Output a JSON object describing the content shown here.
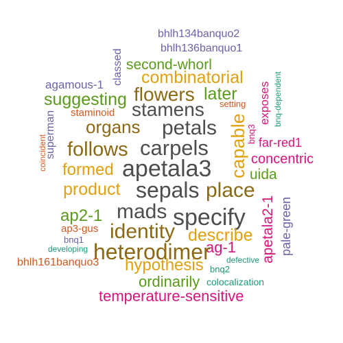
{
  "colors": {
    "gray": "#4d4d4d",
    "brown": "#8b6914",
    "gold": "#e0a010",
    "green": "#5a9a1a",
    "purple": "#6a62a8",
    "pink": "#d6157c",
    "orange": "#d4581e",
    "teal": "#1b9a77"
  },
  "words": {
    "bhlh134banquo2": "bhlh134banquo2",
    "bhlh136banquo1": "bhlh136banquo1",
    "classed": "classed",
    "second_whorl": "second-whorl",
    "bnq_dependent": "bnq-dependent",
    "agamous_1": "agamous-1",
    "combinatorial": "combinatorial",
    "flowers": "flowers",
    "later": "later",
    "exposes": "exposes",
    "suggesting": "suggesting",
    "stamens": "stamens",
    "setting": "setting",
    "staminoid": "staminoid",
    "petals": "petals",
    "organs": "organs",
    "capable": "capable",
    "bnq3": "bnq3",
    "superman": "superman",
    "far_red1": "far-red1",
    "coincident": "coincident",
    "follows": "follows",
    "carpels": "carpels",
    "concentric": "concentric",
    "formed": "formed",
    "apetala3": "apetala3",
    "uida": "uida",
    "product": "product",
    "sepals": "sepals",
    "place": "place",
    "apetala2_1": "apetala2-1",
    "pale_green": "pale-green",
    "ap2_1": "ap2-1",
    "mads": "mads",
    "specify": "specify",
    "ap3_gus": "ap3-gus",
    "identity": "identity",
    "describe": "describe",
    "bnq1": "bnq1",
    "ag_1": "ag-1",
    "developing": "developing",
    "heterodimer": "heterodimer",
    "bhlh161banquo3": "bhlh161banquo3",
    "hypothesis": "hypothesis",
    "defective": "defective",
    "bnq2": "bnq2",
    "ordinarily": "ordinarily",
    "colocalization": "colocalization",
    "temperature_sensitive": "temperature-sensitive"
  }
}
